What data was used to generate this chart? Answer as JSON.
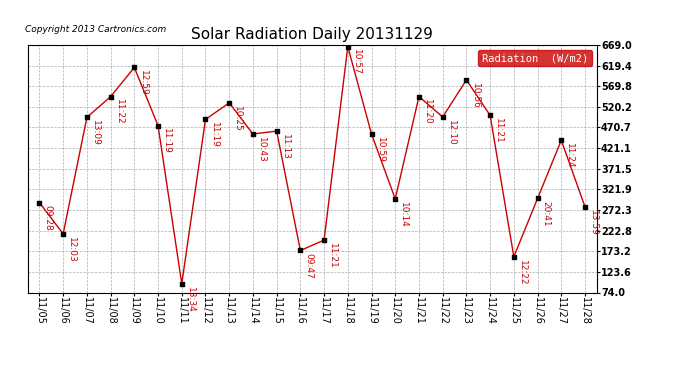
{
  "title": "Solar Radiation Daily 20131129",
  "copyright": "Copyright 2013 Cartronics.com",
  "legend_label": "Radiation  (W/m2)",
  "x_labels": [
    "11/05",
    "11/06",
    "11/07",
    "11/08",
    "11/09",
    "11/10",
    "11/11",
    "11/12",
    "11/13",
    "11/14",
    "11/15",
    "11/16",
    "11/17",
    "11/18",
    "11/19",
    "11/20",
    "11/21",
    "11/22",
    "11/23",
    "11/24",
    "11/25",
    "11/26",
    "11/27",
    "11/28"
  ],
  "y_values": [
    290,
    215,
    495,
    545,
    615,
    475,
    95,
    490,
    530,
    455,
    462,
    175,
    200,
    665,
    455,
    299,
    545,
    496,
    585,
    500,
    160,
    300,
    440,
    280
  ],
  "point_labels": [
    "09:28",
    "12:03",
    "13:09",
    "11:22",
    "12:59",
    "11:19",
    "13:34",
    "11:19",
    "10:25",
    "10:43",
    "11:13",
    "09:47",
    "11:21",
    "10:57",
    "10:59",
    "10:14",
    "11:20",
    "12:10",
    "10:56",
    "11:21",
    "12:22",
    "20:41",
    "11:24",
    "13:59"
  ],
  "y_ticks": [
    74.0,
    123.6,
    173.2,
    222.8,
    272.3,
    321.9,
    371.5,
    421.1,
    470.7,
    520.2,
    569.8,
    619.4,
    669.0
  ],
  "line_color": "#cc0000",
  "marker_color": "#000000",
  "label_color": "#cc0000",
  "background_color": "#ffffff",
  "grid_color": "#999999",
  "legend_bg": "#cc0000",
  "legend_text_color": "#ffffff",
  "title_fontsize": 11,
  "label_fontsize": 6.5,
  "tick_fontsize": 7,
  "copyright_fontsize": 6.5
}
